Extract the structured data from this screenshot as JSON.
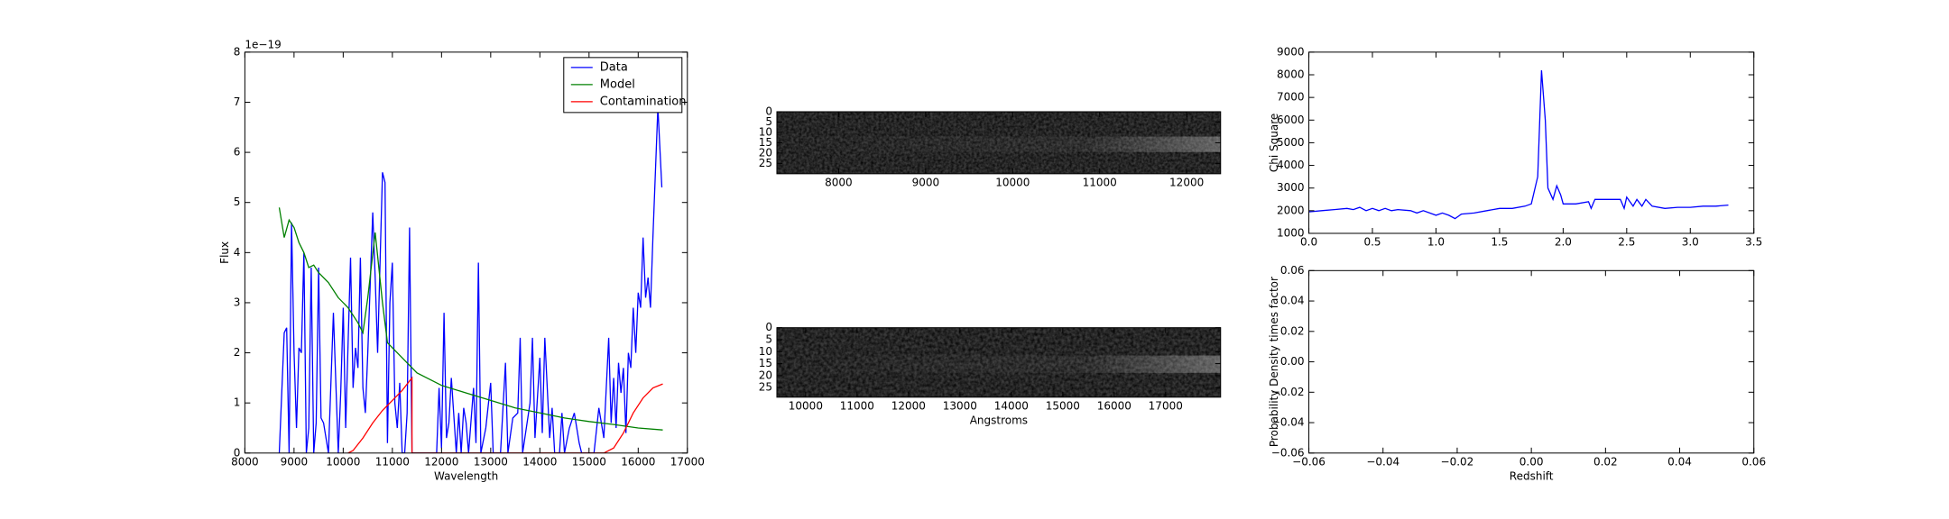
{
  "chart_data": [
    {
      "type": "line",
      "xlabel": "Wavelength",
      "ylabel": "Flux",
      "y_offset_label": "1e−19",
      "xlim": [
        8000,
        17000
      ],
      "xticks": [
        8000,
        9000,
        10000,
        11000,
        12000,
        13000,
        14000,
        15000,
        16000,
        17000
      ],
      "ylim": [
        0,
        8
      ],
      "yticks": [
        0,
        1,
        2,
        3,
        4,
        5,
        6,
        7,
        8
      ],
      "legend": "upper right",
      "series": [
        {
          "name": "Data",
          "color": "#0000ff",
          "x": [
            8700,
            8800,
            8850,
            8900,
            8950,
            9000,
            9050,
            9100,
            9150,
            9200,
            9250,
            9300,
            9350,
            9400,
            9450,
            9500,
            9550,
            9600,
            9700,
            9800,
            9900,
            9950,
            10000,
            10050,
            10100,
            10150,
            10200,
            10250,
            10300,
            10350,
            10400,
            10450,
            10500,
            10600,
            10650,
            10700,
            10800,
            10850,
            10900,
            10950,
            11000,
            11050,
            11100,
            11150,
            11200,
            11250,
            11300,
            11350,
            11400,
            11900,
            11950,
            12000,
            12050,
            12100,
            12150,
            12200,
            12300,
            12350,
            12400,
            12450,
            12500,
            12550,
            12650,
            12700,
            12750,
            12800,
            12900,
            13000,
            13050,
            13200,
            13300,
            13350,
            13450,
            13550,
            13600,
            13650,
            13800,
            13850,
            13900,
            14000,
            14050,
            14100,
            14200,
            14250,
            14300,
            14400,
            14450,
            14500,
            14600,
            14700,
            14800,
            14850,
            15100,
            15200,
            15300,
            15400,
            15450,
            15500,
            15550,
            15600,
            15650,
            15700,
            15750,
            15800,
            15850,
            15900,
            15950,
            16000,
            16050,
            16100,
            16150,
            16200,
            16250,
            16300,
            16400,
            16480
          ],
          "values": [
            0,
            2.4,
            2.5,
            0,
            4.6,
            2,
            0.5,
            2.1,
            2,
            4.0,
            0,
            0.5,
            3.7,
            0,
            0.6,
            3.7,
            0.7,
            0.6,
            0,
            2.8,
            0,
            1.2,
            2.9,
            0.5,
            2.2,
            3.9,
            1.3,
            2.1,
            1.7,
            3.9,
            1.3,
            0.8,
            2.0,
            4.8,
            3.5,
            2.0,
            5.6,
            5.4,
            0.2,
            3.0,
            3.8,
            1.0,
            0.5,
            1.4,
            0,
            0,
            0.8,
            4.5,
            0,
            0,
            1.3,
            0.1,
            2.8,
            0.3,
            0.6,
            1.5,
            0,
            0.8,
            0,
            0.9,
            0.6,
            0,
            1.3,
            0.2,
            3.8,
            0,
            0.5,
            1.4,
            0,
            0,
            1.8,
            0,
            0.7,
            0.8,
            2.3,
            0,
            1.0,
            2.3,
            0.3,
            1.9,
            0.4,
            2.3,
            0.3,
            0.9,
            0,
            0,
            0.8,
            0,
            0.5,
            0.8,
            0.2,
            0,
            0,
            0.9,
            0.3,
            2.3,
            0.6,
            1.5,
            0.5,
            1.8,
            1.2,
            1.7,
            0.4,
            2.0,
            1.7,
            2.9,
            2.0,
            3.2,
            2.9,
            4.3,
            3.1,
            3.5,
            2.9,
            4.3,
            6.9,
            5.3
          ]
        },
        {
          "name": "Model",
          "color": "#008000",
          "x": [
            8700,
            8800,
            8900,
            9000,
            9100,
            9200,
            9300,
            9400,
            9500,
            9700,
            9900,
            10100,
            10300,
            10400,
            10500,
            10650,
            10800,
            10900,
            11200,
            11500,
            12000,
            12500,
            13000,
            13500,
            14000,
            14500,
            15000,
            15500,
            16000,
            16500
          ],
          "values": [
            4.9,
            4.3,
            4.65,
            4.5,
            4.2,
            4.0,
            3.7,
            3.75,
            3.6,
            3.4,
            3.1,
            2.9,
            2.6,
            2.4,
            3.1,
            4.4,
            3.0,
            2.2,
            1.9,
            1.6,
            1.35,
            1.2,
            1.05,
            0.9,
            0.8,
            0.7,
            0.63,
            0.57,
            0.5,
            0.46
          ]
        },
        {
          "name": "Contamination",
          "color": "#ff0000",
          "x": [
            10100,
            10200,
            10400,
            10600,
            10800,
            11000,
            11200,
            11400,
            11400,
            15300,
            15500,
            15700,
            15900,
            16100,
            16300,
            16500
          ],
          "values": [
            0,
            0.05,
            0.3,
            0.6,
            0.85,
            1.05,
            1.25,
            1.5,
            0,
            0,
            0.1,
            0.4,
            0.8,
            1.1,
            1.3,
            1.38
          ]
        }
      ]
    },
    {
      "type": "image",
      "xlim": [
        7290,
        12390
      ],
      "xticks": [
        8000,
        9000,
        10000,
        11000,
        12000
      ],
      "ylim": [
        0,
        30
      ],
      "yticks": [
        0,
        5,
        10,
        15,
        20,
        25
      ]
    },
    {
      "type": "image",
      "xlabel": "Angstroms",
      "xlim": [
        9440,
        18070
      ],
      "xticks": [
        10000,
        11000,
        12000,
        13000,
        14000,
        15000,
        16000,
        17000
      ],
      "ylim": [
        0,
        29
      ],
      "yticks": [
        0,
        5,
        10,
        15,
        20,
        25
      ]
    },
    {
      "type": "line",
      "ylabel": "Chi Square",
      "xlim": [
        0,
        3.5
      ],
      "xticks": [
        {
          "value": 0,
          "label": "0.0"
        },
        0.5,
        {
          "value": 1,
          "label": "1.0"
        },
        1.5,
        {
          "value": 2,
          "label": "2.0"
        },
        2.5,
        {
          "value": 3,
          "label": "3.0"
        },
        3.5
      ],
      "ylim": [
        1000,
        9000
      ],
      "yticks": [
        1000,
        2000,
        3000,
        4000,
        5000,
        6000,
        7000,
        8000,
        9000
      ],
      "series": [
        {
          "color": "#0000ff",
          "x": [
            0,
            0.1,
            0.2,
            0.3,
            0.35,
            0.4,
            0.45,
            0.5,
            0.55,
            0.6,
            0.65,
            0.7,
            0.8,
            0.85,
            0.9,
            1.0,
            1.05,
            1.1,
            1.15,
            1.2,
            1.3,
            1.4,
            1.5,
            1.6,
            1.7,
            1.75,
            1.8,
            1.83,
            1.86,
            1.88,
            1.92,
            1.95,
            1.98,
            2.0,
            2.1,
            2.2,
            2.22,
            2.25,
            2.35,
            2.45,
            2.48,
            2.5,
            2.55,
            2.58,
            2.62,
            2.65,
            2.7,
            2.8,
            2.9,
            3.0,
            3.1,
            3.2,
            3.3
          ],
          "values": [
            1950,
            2000,
            2050,
            2100,
            2050,
            2150,
            2000,
            2100,
            2000,
            2100,
            2000,
            2050,
            2000,
            1900,
            2000,
            1800,
            1900,
            1800,
            1650,
            1850,
            1900,
            2000,
            2100,
            2100,
            2200,
            2300,
            3500,
            8200,
            6000,
            3000,
            2500,
            3100,
            2700,
            2300,
            2300,
            2400,
            2100,
            2500,
            2500,
            2500,
            2100,
            2600,
            2200,
            2500,
            2200,
            2500,
            2200,
            2100,
            2150,
            2150,
            2200,
            2200,
            2250
          ]
        }
      ]
    },
    {
      "type": "line",
      "ylabel": "Probability Density times factor",
      "xlabel": "Redshift",
      "xlim": [
        -0.06,
        0.06
      ],
      "xticks": [
        {
          "value": -0.06,
          "label": "−0.06"
        },
        {
          "value": -0.04,
          "label": "−0.04"
        },
        {
          "value": -0.02,
          "label": "−0.02"
        },
        {
          "value": 0,
          "label": "0.00"
        },
        0.02,
        0.04,
        0.06
      ],
      "ylim": [
        -0.06,
        0.06
      ],
      "yticks": [
        {
          "value": -0.06,
          "label": "−0.06"
        },
        {
          "value": -0.04,
          "label": "−0.04"
        },
        {
          "value": -0.02,
          "label": "−0.02"
        },
        {
          "value": 0,
          "label": "0.00"
        },
        0.02,
        0.04,
        0.06
      ],
      "series": []
    }
  ]
}
